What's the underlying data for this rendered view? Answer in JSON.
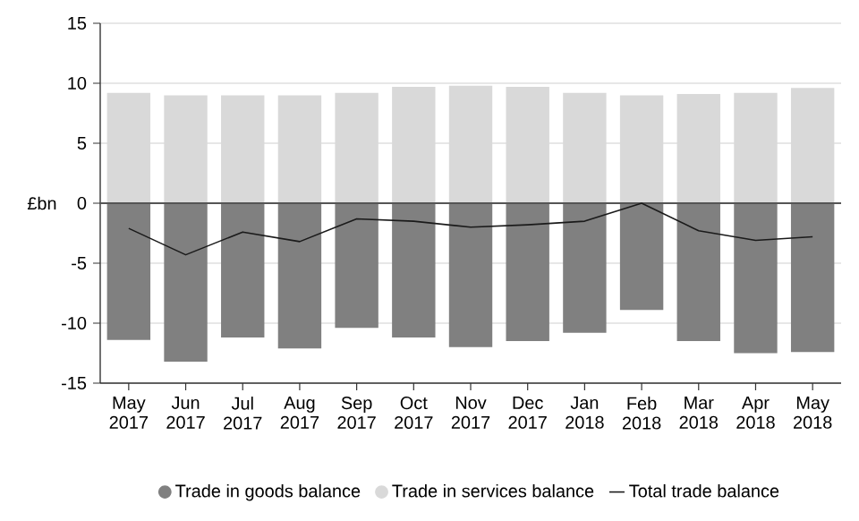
{
  "chart_data": {
    "type": "bar",
    "ylabel": "£bn",
    "categories": [
      "May 2017",
      "Jun 2017",
      "Jul 2017",
      "Aug 2017",
      "Sep 2017",
      "Oct 2017",
      "Nov 2017",
      "Dec 2017",
      "Jan 2018",
      "Feb 2018",
      "Mar 2018",
      "Apr 2018",
      "May 2018"
    ],
    "series": [
      {
        "name": "Trade in goods balance",
        "color": "#808080",
        "values": [
          -11.4,
          -13.2,
          -11.2,
          -12.1,
          -10.4,
          -11.2,
          -12.0,
          -11.5,
          -10.8,
          -8.9,
          -11.5,
          -12.5,
          -12.4
        ]
      },
      {
        "name": "Trade in services balance",
        "color": "#d9d9d9",
        "values": [
          9.2,
          9.0,
          9.0,
          9.0,
          9.2,
          9.7,
          9.8,
          9.7,
          9.2,
          9.0,
          9.1,
          9.2,
          9.6
        ]
      },
      {
        "name": "Total trade balance",
        "type": "line",
        "color": "#1a1a1a",
        "values": [
          -2.1,
          -4.3,
          -2.4,
          -3.2,
          -1.3,
          -1.5,
          -2.0,
          -1.8,
          -1.5,
          0.0,
          -2.3,
          -3.1,
          -2.8
        ]
      }
    ],
    "ylim": [
      -15,
      15
    ],
    "yticks": [
      -15,
      -10,
      -5,
      0,
      5,
      10,
      15
    ],
    "ref_lines": [
      {
        "axis": "y",
        "value": 0,
        "color": "#555555"
      }
    ],
    "stacked": true,
    "grid": "y",
    "legend": "bottom",
    "marker": "none"
  }
}
